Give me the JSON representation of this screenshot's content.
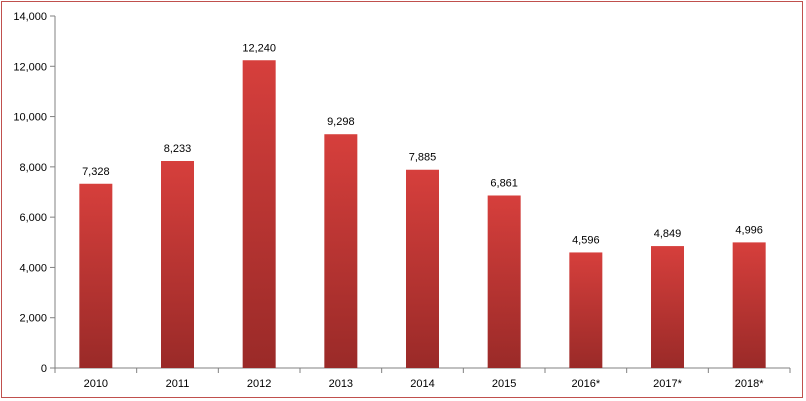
{
  "chart_data": {
    "type": "bar",
    "title": "",
    "xlabel": "",
    "ylabel": "",
    "categories": [
      "2010",
      "2011",
      "2012",
      "2013",
      "2014",
      "2015",
      "2016*",
      "2017*",
      "2018*"
    ],
    "values": [
      7328,
      8233,
      12240,
      9298,
      7885,
      6861,
      4596,
      4849,
      4996
    ],
    "value_labels": [
      "7,328",
      "8,233",
      "12,240",
      "9,298",
      "7,885",
      "6,861",
      "4,596",
      "4,849",
      "4,996"
    ],
    "ylim": [
      0,
      14000
    ],
    "yticks": [
      0,
      2000,
      4000,
      6000,
      8000,
      10000,
      12000,
      14000
    ],
    "ytick_labels": [
      "0",
      "2,000",
      "4,000",
      "6,000",
      "8,000",
      "10,000",
      "12,000",
      "14,000"
    ],
    "grid": false,
    "legend": "none",
    "colors": {
      "bar_top": "#d63f3c",
      "bar_bottom": "#9a2a28",
      "frame": "#c0504d",
      "axis": "#808080"
    }
  }
}
